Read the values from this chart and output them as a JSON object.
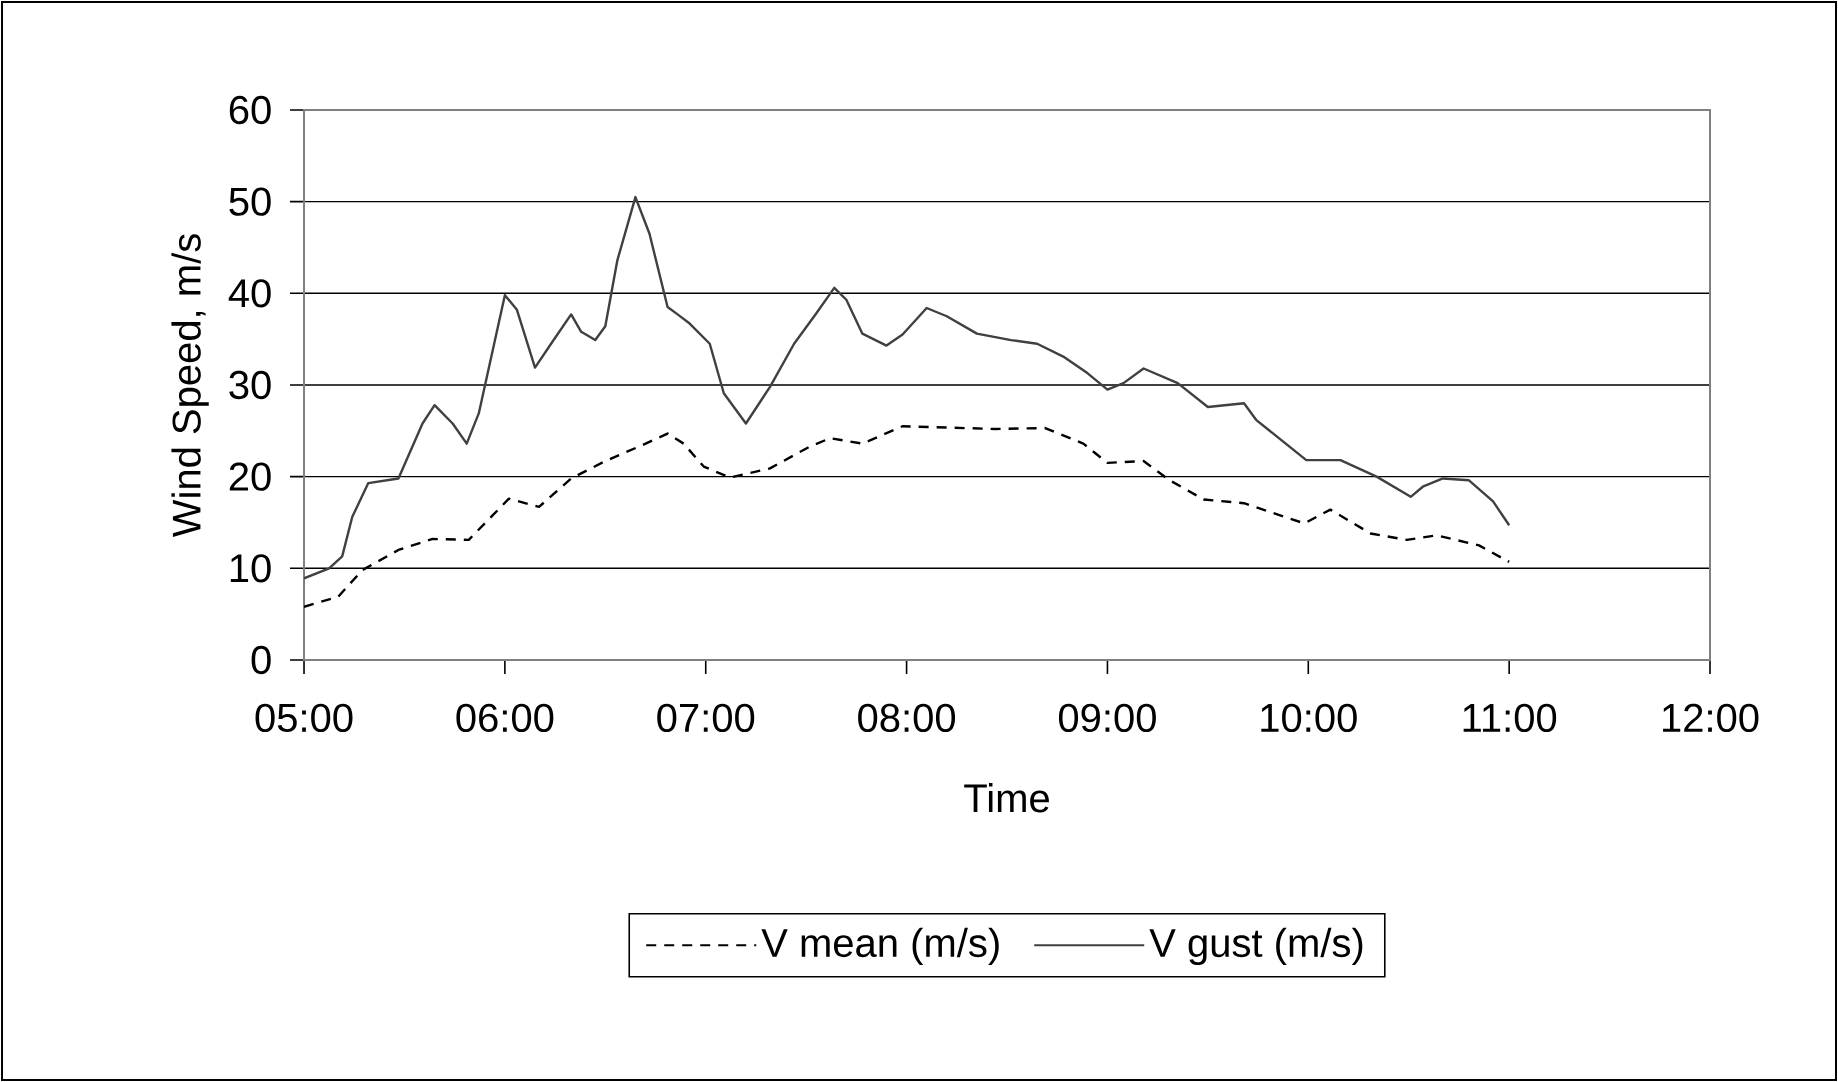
{
  "chart_data": {
    "type": "line",
    "xlabel": "Time",
    "ylabel": "Wind Speed, m/s",
    "xlim": [
      5,
      12
    ],
    "ylim": [
      0,
      60
    ],
    "xticks": [
      {
        "value": 5,
        "label": "05:00"
      },
      {
        "value": 6,
        "label": "06:00"
      },
      {
        "value": 7,
        "label": "07:00"
      },
      {
        "value": 8,
        "label": "08:00"
      },
      {
        "value": 9,
        "label": "09:00"
      },
      {
        "value": 10,
        "label": "10:00"
      },
      {
        "value": 11,
        "label": "11:00"
      },
      {
        "value": 12,
        "label": "12:00"
      }
    ],
    "yticks": [
      0,
      10,
      20,
      30,
      40,
      50,
      60
    ],
    "grid": "y",
    "legend": "bottom",
    "marker": "none",
    "series": [
      {
        "name": "V mean (m/s)",
        "color": "#000000",
        "line_style": "dashed",
        "x": [
          5.0,
          5.17,
          5.29,
          5.47,
          5.64,
          5.82,
          6.02,
          6.17,
          6.33,
          6.5,
          6.68,
          6.81,
          6.89,
          6.99,
          7.12,
          7.32,
          7.52,
          7.62,
          7.78,
          7.98,
          8.44,
          8.69,
          8.88,
          9.0,
          9.18,
          9.31,
          9.48,
          9.68,
          9.98,
          10.11,
          10.31,
          10.49,
          10.64,
          10.85,
          11.0
        ],
        "values": [
          5.8,
          6.9,
          9.8,
          12.0,
          13.2,
          13.1,
          17.6,
          16.7,
          19.8,
          21.7,
          23.4,
          24.7,
          23.6,
          21.1,
          19.9,
          20.9,
          23.3,
          24.2,
          23.6,
          25.5,
          25.2,
          25.3,
          23.6,
          21.5,
          21.7,
          19.6,
          17.5,
          17.1,
          14.9,
          16.4,
          13.8,
          13.1,
          13.6,
          12.5,
          10.7
        ]
      },
      {
        "name": "V gust (m/s)",
        "color": "#404040",
        "line_style": "solid",
        "x": [
          5.0,
          5.125,
          5.19,
          5.24,
          5.32,
          5.47,
          5.59,
          5.65,
          5.74,
          5.81,
          5.87,
          6.0,
          6.06,
          6.15,
          6.23,
          6.33,
          6.38,
          6.45,
          6.5,
          6.56,
          6.65,
          6.72,
          6.81,
          6.86,
          6.92,
          7.02,
          7.09,
          7.2,
          7.32,
          7.44,
          7.55,
          7.64,
          7.7,
          7.78,
          7.9,
          7.98,
          8.1,
          8.2,
          8.35,
          8.52,
          8.65,
          8.78,
          8.9,
          9.0,
          9.08,
          9.18,
          9.35,
          9.5,
          9.68,
          9.74,
          9.99,
          10.16,
          10.34,
          10.51,
          10.57,
          10.67,
          10.8,
          10.92,
          11.0
        ],
        "values": [
          8.9,
          10.0,
          11.3,
          15.6,
          19.3,
          19.8,
          25.8,
          27.8,
          25.8,
          23.6,
          26.9,
          39.8,
          38.2,
          31.9,
          34.5,
          37.7,
          35.8,
          34.9,
          36.4,
          43.6,
          50.5,
          46.5,
          38.5,
          37.7,
          36.7,
          34.5,
          29.1,
          25.8,
          29.8,
          34.5,
          37.8,
          40.6,
          39.3,
          35.6,
          34.3,
          35.5,
          38.4,
          37.5,
          35.6,
          34.9,
          34.5,
          33.1,
          31.3,
          29.5,
          30.2,
          31.8,
          30.2,
          27.6,
          28.0,
          26.2,
          21.8,
          21.8,
          20.0,
          17.8,
          18.9,
          19.8,
          19.6,
          17.3,
          14.7
        ]
      }
    ]
  }
}
